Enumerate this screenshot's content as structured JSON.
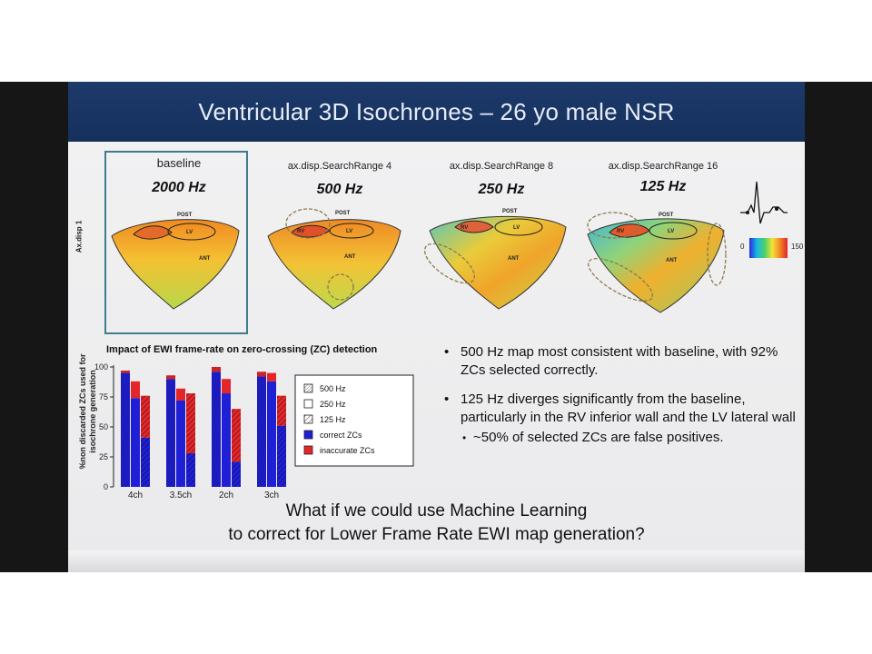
{
  "slide": {
    "title": "Ventricular 3D Isochrones – 26 yo male NSR",
    "axis_label": "Ax.disp 1",
    "panels": [
      {
        "label": "baseline",
        "freq": "2000 Hz"
      },
      {
        "label": "ax.disp.SearchRange 4",
        "freq": "500 Hz"
      },
      {
        "label": "ax.disp.SearchRange 8",
        "freq": "250 Hz"
      },
      {
        "label": "ax.disp.SearchRange 16",
        "freq": "125 Hz"
      }
    ],
    "heart_labels": {
      "post": "POST",
      "lv": "LV",
      "rv": "RV",
      "ant": "ANT"
    },
    "color_scale": {
      "min": "0",
      "max": "150 m"
    },
    "bullets": [
      "500 Hz map most consistent with baseline, with 92% ZCs selected correctly.",
      "125 Hz diverges significantly from the baseline, particularly in the RV inferior wall and the LV lateral wall"
    ],
    "sub_bullet": "~50% of selected ZCs are false positives.",
    "question_line1": "What if we could use Machine Learning",
    "question_line2": "to correct for Lower Frame Rate EWI map generation?"
  },
  "chart_data": {
    "type": "bar",
    "title": "Impact of EWI frame-rate on zero-crossing (ZC) detection",
    "ylabel": "%non discarded ZCs used for isochrone generation",
    "ylim": [
      0,
      100
    ],
    "yticks": [
      0,
      25,
      50,
      75,
      100
    ],
    "categories": [
      "4ch",
      "3.5ch",
      "2ch",
      "3ch"
    ],
    "frame_rates": [
      "500 Hz",
      "250 Hz",
      "125 Hz"
    ],
    "series": [
      {
        "name": "correct ZCs",
        "color": "#1f1fd6",
        "values": {
          "500 Hz": [
            95,
            90,
            96,
            92
          ],
          "250 Hz": [
            74,
            72,
            78,
            88
          ],
          "125 Hz": [
            41,
            28,
            21,
            51
          ]
        }
      },
      {
        "name": "inaccurate ZCs",
        "color": "#e3262a",
        "values": {
          "500 Hz": [
            2,
            3,
            4,
            4
          ],
          "250 Hz": [
            14,
            10,
            12,
            7
          ],
          "125 Hz": [
            35,
            50,
            44,
            25
          ]
        }
      }
    ],
    "legend": [
      "500 Hz",
      "250 Hz",
      "125 Hz",
      "correct ZCs",
      "inaccurate ZCs"
    ],
    "legend_position": "right",
    "grid": false
  }
}
